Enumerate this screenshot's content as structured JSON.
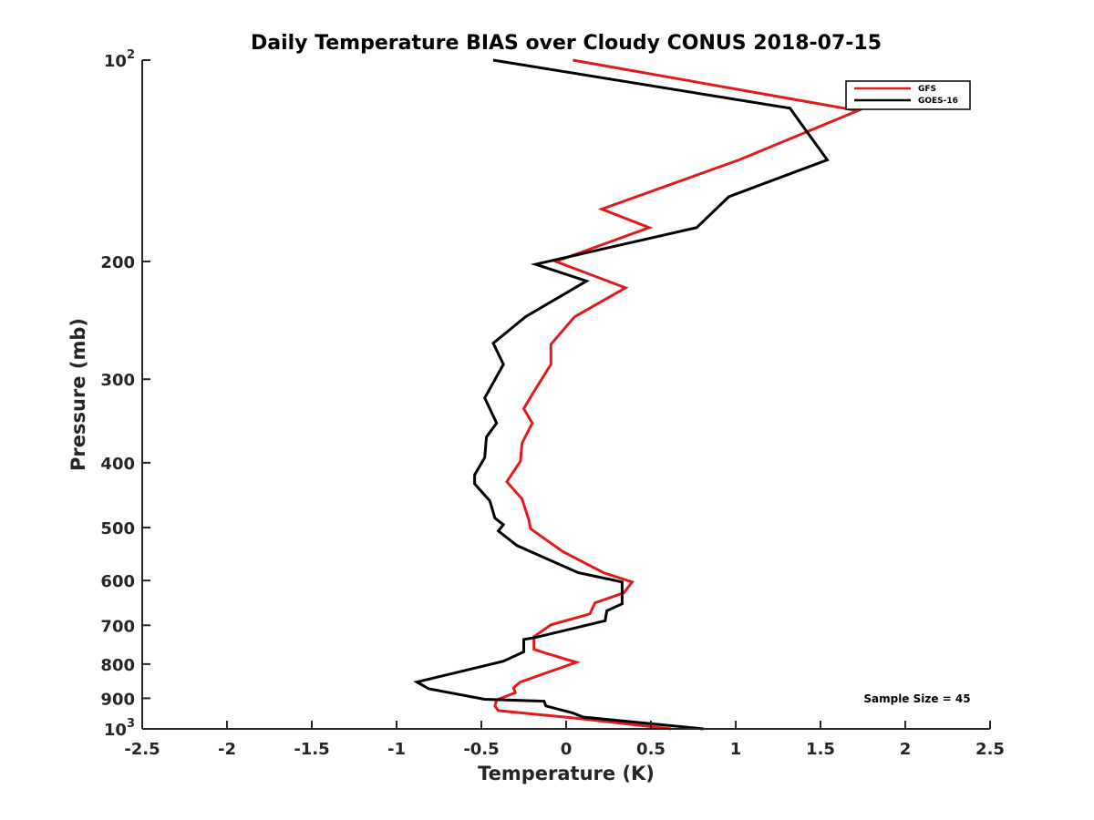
{
  "chart_data": {
    "type": "line",
    "title": "Daily Temperature BIAS over Cloudy CONUS 2018-07-15",
    "xlabel": "Temperature (K)",
    "ylabel": "Pressure (mb)",
    "xlim": [
      -2.5,
      2.5
    ],
    "ylim": [
      100,
      1000
    ],
    "yscale": "log",
    "y_reversed": true,
    "grid": false,
    "legend_position": "top-right",
    "annotation": "Sample Size = 45",
    "x_ticks": [
      "-2.5",
      "-2",
      "-1.5",
      "-1",
      "-0.5",
      "0",
      "0.5",
      "1",
      "1.5",
      "2",
      "2.5"
    ],
    "x_tick_values": [
      -2.5,
      -2,
      -1.5,
      -1,
      -0.5,
      0,
      0.5,
      1,
      1.5,
      2,
      2.5
    ],
    "y_ticks": [
      {
        "value": 100,
        "base": "10",
        "exp": "2"
      },
      {
        "value": 200,
        "label": "200"
      },
      {
        "value": 300,
        "label": "300"
      },
      {
        "value": 400,
        "label": "400"
      },
      {
        "value": 500,
        "label": "500"
      },
      {
        "value": 600,
        "label": "600"
      },
      {
        "value": 700,
        "label": "700"
      },
      {
        "value": 800,
        "label": "800"
      },
      {
        "value": 900,
        "label": "900"
      },
      {
        "value": 1000,
        "base": "10",
        "exp": "3"
      }
    ],
    "series": [
      {
        "name": "GFS",
        "color": "#e31a1c",
        "points": [
          {
            "x": 0.04,
            "y": 100
          },
          {
            "x": 1.72,
            "y": 119
          },
          {
            "x": 1.02,
            "y": 141
          },
          {
            "x": 0.21,
            "y": 167
          },
          {
            "x": 0.49,
            "y": 178
          },
          {
            "x": -0.06,
            "y": 200
          },
          {
            "x": 0.35,
            "y": 219
          },
          {
            "x": 0.05,
            "y": 242
          },
          {
            "x": -0.09,
            "y": 266
          },
          {
            "x": -0.09,
            "y": 285
          },
          {
            "x": -0.19,
            "y": 313
          },
          {
            "x": -0.25,
            "y": 332
          },
          {
            "x": -0.2,
            "y": 349
          },
          {
            "x": -0.26,
            "y": 374
          },
          {
            "x": -0.27,
            "y": 398
          },
          {
            "x": -0.35,
            "y": 427
          },
          {
            "x": -0.26,
            "y": 453
          },
          {
            "x": -0.22,
            "y": 487
          },
          {
            "x": -0.21,
            "y": 502
          },
          {
            "x": -0.02,
            "y": 543
          },
          {
            "x": 0.22,
            "y": 584
          },
          {
            "x": 0.39,
            "y": 603
          },
          {
            "x": 0.34,
            "y": 626
          },
          {
            "x": 0.17,
            "y": 648
          },
          {
            "x": 0.14,
            "y": 673
          },
          {
            "x": -0.09,
            "y": 699
          },
          {
            "x": -0.19,
            "y": 728
          },
          {
            "x": -0.19,
            "y": 760
          },
          {
            "x": -0.11,
            "y": 772
          },
          {
            "x": 0.06,
            "y": 795
          },
          {
            "x": -0.27,
            "y": 851
          },
          {
            "x": -0.31,
            "y": 868
          },
          {
            "x": -0.3,
            "y": 883
          },
          {
            "x": -0.41,
            "y": 905
          },
          {
            "x": -0.42,
            "y": 924
          },
          {
            "x": -0.4,
            "y": 939
          },
          {
            "x": -0.22,
            "y": 949
          },
          {
            "x": 0.03,
            "y": 962
          },
          {
            "x": 0.62,
            "y": 1000
          }
        ]
      },
      {
        "name": "GOES-16",
        "color": "#000000",
        "points": [
          {
            "x": -0.43,
            "y": 100
          },
          {
            "x": 1.32,
            "y": 118
          },
          {
            "x": 1.54,
            "y": 141
          },
          {
            "x": 0.96,
            "y": 160
          },
          {
            "x": 0.77,
            "y": 178
          },
          {
            "x": -0.18,
            "y": 202
          },
          {
            "x": 0.12,
            "y": 214
          },
          {
            "x": -0.24,
            "y": 242
          },
          {
            "x": -0.43,
            "y": 265
          },
          {
            "x": -0.37,
            "y": 285
          },
          {
            "x": -0.48,
            "y": 320
          },
          {
            "x": -0.41,
            "y": 349
          },
          {
            "x": -0.47,
            "y": 366
          },
          {
            "x": -0.48,
            "y": 393
          },
          {
            "x": -0.54,
            "y": 417
          },
          {
            "x": -0.54,
            "y": 430
          },
          {
            "x": -0.45,
            "y": 456
          },
          {
            "x": -0.42,
            "y": 484
          },
          {
            "x": -0.37,
            "y": 495
          },
          {
            "x": -0.4,
            "y": 506
          },
          {
            "x": -0.29,
            "y": 532
          },
          {
            "x": 0.07,
            "y": 584
          },
          {
            "x": 0.33,
            "y": 603
          },
          {
            "x": 0.33,
            "y": 650
          },
          {
            "x": 0.24,
            "y": 666
          },
          {
            "x": 0.23,
            "y": 689
          },
          {
            "x": -0.17,
            "y": 729
          },
          {
            "x": -0.25,
            "y": 735
          },
          {
            "x": -0.25,
            "y": 767
          },
          {
            "x": -0.37,
            "y": 792
          },
          {
            "x": -0.88,
            "y": 851
          },
          {
            "x": -0.81,
            "y": 871
          },
          {
            "x": -0.48,
            "y": 903
          },
          {
            "x": -0.13,
            "y": 909
          },
          {
            "x": -0.12,
            "y": 924
          },
          {
            "x": 0.04,
            "y": 947
          },
          {
            "x": 0.1,
            "y": 960
          },
          {
            "x": 0.81,
            "y": 1000
          }
        ]
      }
    ]
  }
}
